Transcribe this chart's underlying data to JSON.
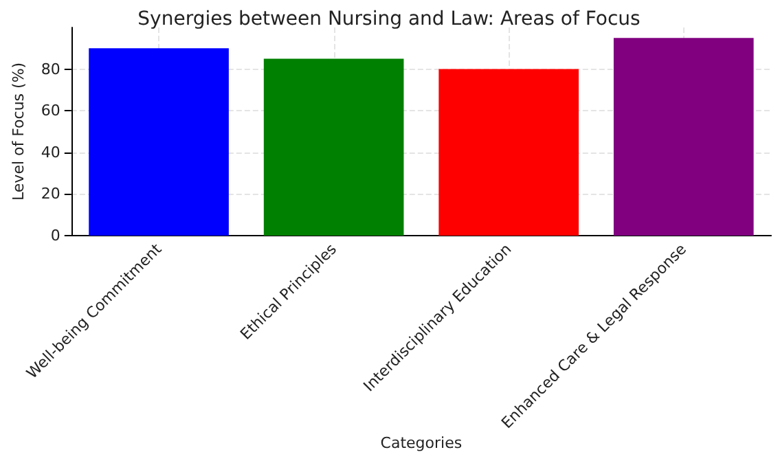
{
  "chart_data": {
    "type": "bar",
    "title": "Synergies between Nursing and Law: Areas of Focus",
    "xlabel": "Categories",
    "ylabel": "Level of Focus (%)",
    "categories": [
      "Well-being Commitment",
      "Ethical Principles",
      "Interdisciplinary Education",
      "Enhanced Care & Legal Response"
    ],
    "values": [
      90,
      85,
      80,
      95
    ],
    "colors": [
      "#0000ff",
      "#008000",
      "#ff0000",
      "#800080"
    ],
    "ylim": [
      0,
      100
    ],
    "yticks": [
      0,
      20,
      40,
      60,
      80
    ],
    "grid": true
  }
}
